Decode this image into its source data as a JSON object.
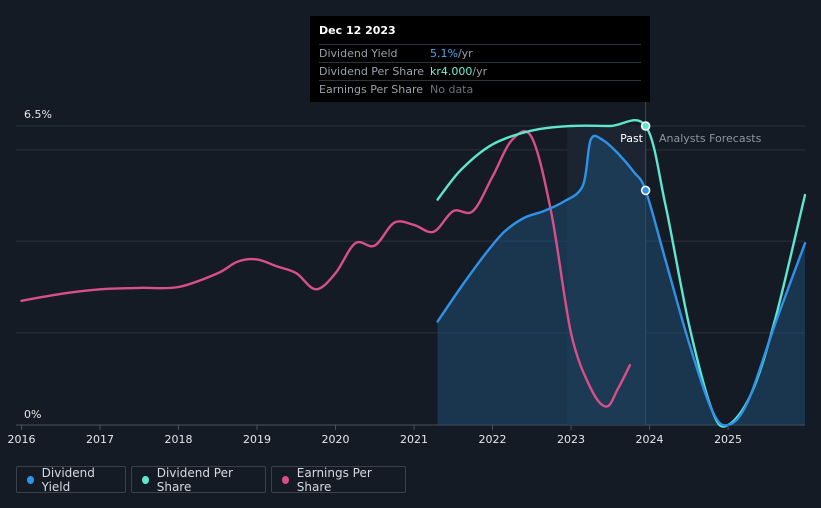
{
  "tooltip": {
    "date": "Dec 12 2023",
    "rows": [
      {
        "label": "Dividend Yield",
        "value": "5.1%",
        "unit": " /yr",
        "color": "#4aa8ee"
      },
      {
        "label": "Dividend Per Share",
        "value": "kr4.000",
        "unit": " /yr",
        "color": "#6ff2d8"
      },
      {
        "label": "Earnings Per Share",
        "value": "No data",
        "unit": "",
        "color": "#6b727c"
      }
    ]
  },
  "legend": [
    {
      "label": "Dividend Yield",
      "color": "#2e93e8"
    },
    {
      "label": "Dividend Per Share",
      "color": "#5ee6cf"
    },
    {
      "label": "Earnings Per Share",
      "color": "#d94f8a"
    }
  ],
  "chart_data": {
    "type": "line",
    "y_max_label": "6.5%",
    "y_min_label": "0%",
    "ylim": [
      0,
      6.5
    ],
    "xlim": [
      2015.93,
      2025.98
    ],
    "x_ticks": [
      "2016",
      "2017",
      "2018",
      "2019",
      "2020",
      "2021",
      "2022",
      "2023",
      "2024",
      "2025"
    ],
    "past_label": "Past",
    "forecast_label": "Analysts Forecasts",
    "past_region": [
      2022.95,
      2023.95
    ],
    "series": [
      {
        "name": "Dividend Yield",
        "color": "#2e93e8",
        "unit": "%",
        "points": [
          [
            2021.3,
            2.25
          ],
          [
            2021.6,
            3.0
          ],
          [
            2021.9,
            3.7
          ],
          [
            2022.15,
            4.2
          ],
          [
            2022.4,
            4.5
          ],
          [
            2022.65,
            4.65
          ],
          [
            2022.9,
            4.85
          ],
          [
            2023.15,
            5.2
          ],
          [
            2023.25,
            6.2
          ],
          [
            2023.4,
            6.2
          ],
          [
            2023.6,
            5.9
          ],
          [
            2023.8,
            5.5
          ],
          [
            2023.95,
            5.1
          ],
          [
            2024.2,
            3.6
          ],
          [
            2024.5,
            1.8
          ],
          [
            2024.8,
            0.3
          ],
          [
            2025.0,
            0.0
          ],
          [
            2025.25,
            0.5
          ],
          [
            2025.6,
            2.2
          ],
          [
            2025.98,
            3.95
          ]
        ]
      },
      {
        "name": "Dividend Per Share",
        "color": "#5ee6cf",
        "unit": "kr",
        "points": [
          [
            2021.3,
            4.9
          ],
          [
            2021.6,
            5.55
          ],
          [
            2022.0,
            6.1
          ],
          [
            2022.5,
            6.4
          ],
          [
            2023.0,
            6.5
          ],
          [
            2023.5,
            6.5
          ],
          [
            2023.95,
            6.5
          ],
          [
            2024.2,
            4.8
          ],
          [
            2024.5,
            2.2
          ],
          [
            2024.8,
            0.3
          ],
          [
            2025.0,
            0.0
          ],
          [
            2025.3,
            0.7
          ],
          [
            2025.6,
            2.3
          ],
          [
            2025.98,
            5.0
          ]
        ]
      },
      {
        "name": "Earnings Per Share",
        "color": "#d94f8a",
        "unit": "kr",
        "points": [
          [
            2016.0,
            2.7
          ],
          [
            2016.5,
            2.85
          ],
          [
            2017.0,
            2.95
          ],
          [
            2017.5,
            2.98
          ],
          [
            2018.0,
            3.0
          ],
          [
            2018.5,
            3.3
          ],
          [
            2018.75,
            3.55
          ],
          [
            2019.0,
            3.6
          ],
          [
            2019.25,
            3.45
          ],
          [
            2019.5,
            3.3
          ],
          [
            2019.75,
            2.95
          ],
          [
            2020.0,
            3.3
          ],
          [
            2020.25,
            3.95
          ],
          [
            2020.5,
            3.9
          ],
          [
            2020.75,
            4.4
          ],
          [
            2021.0,
            4.35
          ],
          [
            2021.25,
            4.2
          ],
          [
            2021.5,
            4.65
          ],
          [
            2021.75,
            4.65
          ],
          [
            2022.0,
            5.4
          ],
          [
            2022.25,
            6.2
          ],
          [
            2022.5,
            6.25
          ],
          [
            2022.75,
            4.6
          ],
          [
            2023.0,
            2.0
          ],
          [
            2023.25,
            0.8
          ],
          [
            2023.45,
            0.4
          ],
          [
            2023.6,
            0.8
          ],
          [
            2023.75,
            1.3
          ]
        ]
      }
    ],
    "markers": [
      {
        "series": "Dividend Yield",
        "x": 2023.95,
        "y": 5.1
      },
      {
        "series": "Dividend Per Share",
        "x": 2023.95,
        "y": 6.5
      }
    ]
  }
}
